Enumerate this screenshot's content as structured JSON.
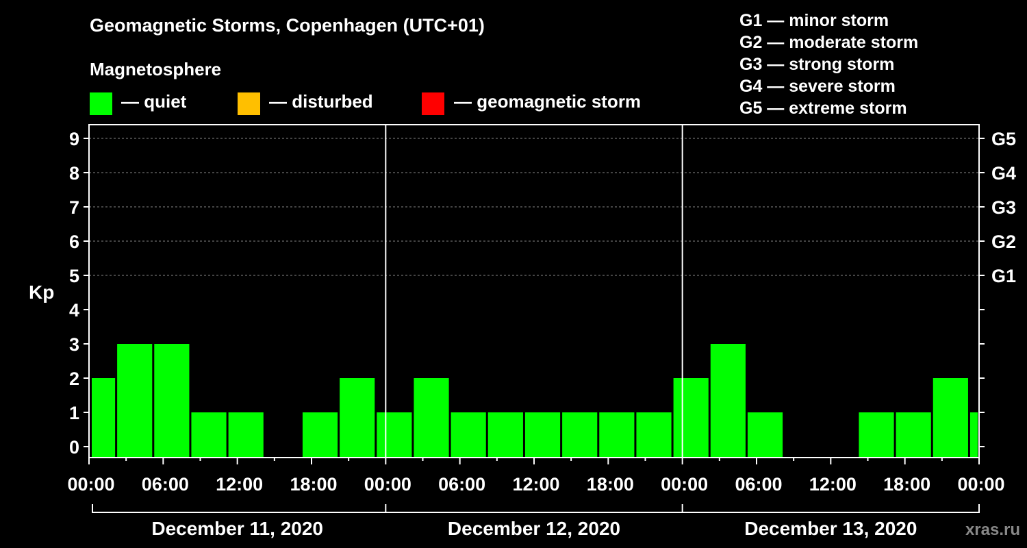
{
  "title": "Geomagnetic Storms, Copenhagen (UTC+01)",
  "legend": {
    "heading": "Magnetosphere",
    "items": [
      {
        "label": "— quiet",
        "color": "#00ff00"
      },
      {
        "label": "— disturbed",
        "color": "#ffbf00"
      },
      {
        "label": "— geomagnetic storm",
        "color": "#ff0000"
      }
    ]
  },
  "storm_levels": [
    "G1 — minor storm",
    "G2 — moderate storm",
    "G3 — strong storm",
    "G4 — severe storm",
    "G5 — extreme storm"
  ],
  "watermark": "xras.ru",
  "chart_data": {
    "type": "bar",
    "title": "Geomagnetic Storms, Copenhagen (UTC+01)",
    "ylabel": "Kp",
    "ylim": [
      0,
      9
    ],
    "yticks": [
      "0",
      "1",
      "2",
      "3",
      "4",
      "5",
      "6",
      "7",
      "8",
      "9"
    ],
    "right_ticks": [
      {
        "kp": 5,
        "label": "G1"
      },
      {
        "kp": 6,
        "label": "G2"
      },
      {
        "kp": 7,
        "label": "G3"
      },
      {
        "kp": 8,
        "label": "G4"
      },
      {
        "kp": 9,
        "label": "G5"
      }
    ],
    "grid": "dashed at Kp 5–9",
    "x_tick_labels": [
      "00:00",
      "06:00",
      "12:00",
      "18:00",
      "00:00",
      "06:00",
      "12:00",
      "18:00",
      "00:00",
      "06:00",
      "12:00",
      "18:00",
      "00:00"
    ],
    "days": [
      "December 11, 2020",
      "December 12, 2020",
      "December 13, 2020"
    ],
    "bar_color": "#00ff00",
    "bars": [
      {
        "start": -1,
        "kp": 2
      },
      {
        "start": 2,
        "kp": 3
      },
      {
        "start": 5,
        "kp": 3
      },
      {
        "start": 8,
        "kp": 1
      },
      {
        "start": 11,
        "kp": 1
      },
      {
        "start": 14,
        "kp": 0
      },
      {
        "start": 17,
        "kp": 1
      },
      {
        "start": 20,
        "kp": 2
      },
      {
        "start": 23,
        "kp": 1
      },
      {
        "start": 26,
        "kp": 2
      },
      {
        "start": 29,
        "kp": 1
      },
      {
        "start": 32,
        "kp": 1
      },
      {
        "start": 35,
        "kp": 1
      },
      {
        "start": 38,
        "kp": 1
      },
      {
        "start": 41,
        "kp": 1
      },
      {
        "start": 44,
        "kp": 1
      },
      {
        "start": 47,
        "kp": 2
      },
      {
        "start": 50,
        "kp": 3
      },
      {
        "start": 53,
        "kp": 1
      },
      {
        "start": 56,
        "kp": 0
      },
      {
        "start": 59,
        "kp": 0
      },
      {
        "start": 62,
        "kp": 1
      },
      {
        "start": 65,
        "kp": 1
      },
      {
        "start": 68,
        "kp": 2
      },
      {
        "start": 71,
        "kp": 1
      }
    ]
  }
}
